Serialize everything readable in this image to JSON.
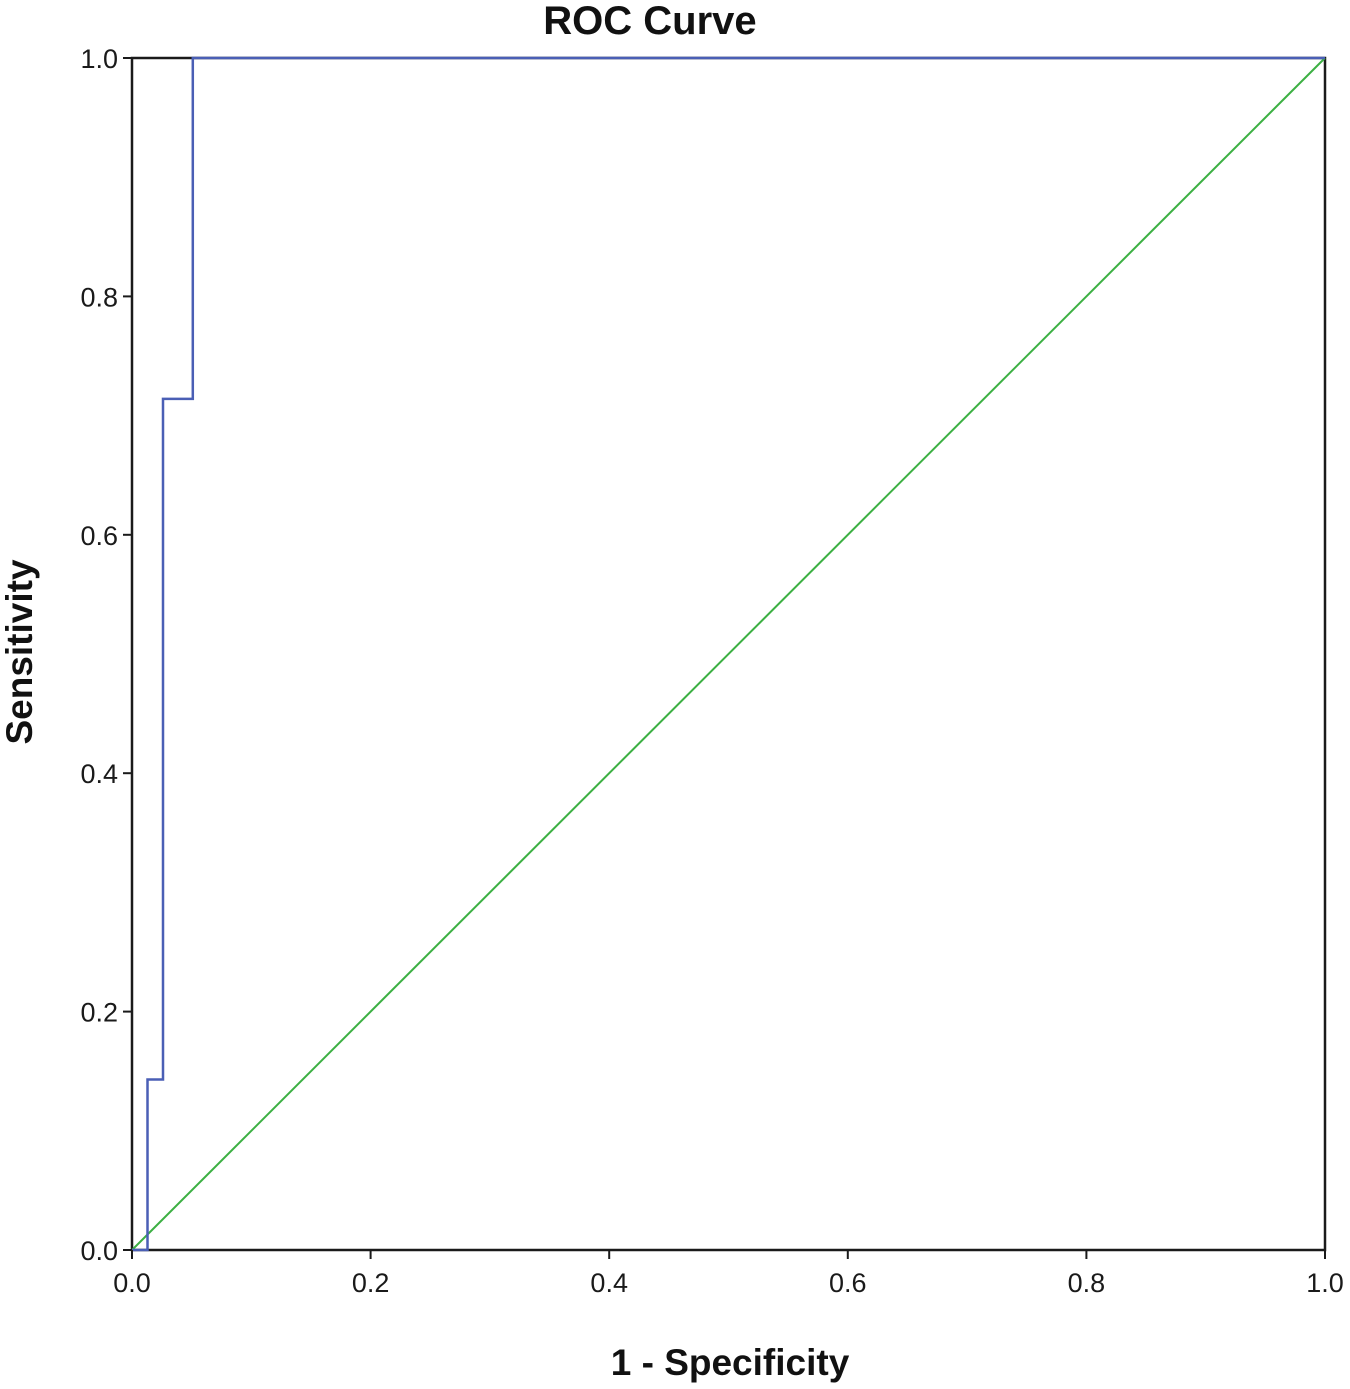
{
  "chart_data": {
    "type": "line",
    "title": "ROC Curve",
    "xlabel": "1 - Specificity",
    "ylabel": "Sensitivity",
    "xlim": [
      0,
      1
    ],
    "ylim": [
      0,
      1
    ],
    "xticks": [
      "0.0",
      "0.2",
      "0.4",
      "0.6",
      "0.8",
      "1.0"
    ],
    "yticks": [
      "0.0",
      "0.2",
      "0.4",
      "0.6",
      "0.8",
      "1.0"
    ],
    "grid": false,
    "legend": "none",
    "series": [
      {
        "color": "#4a5fb5",
        "step": true,
        "x": [
          0.0,
          0.013,
          0.013,
          0.026,
          0.026,
          0.051,
          0.051,
          1.0
        ],
        "y": [
          0.0,
          0.0,
          0.143,
          0.143,
          0.714,
          0.714,
          1.0,
          1.0
        ]
      },
      {
        "color": "#3cb043",
        "step": false,
        "x": [
          0.0,
          1.0
        ],
        "y": [
          0.0,
          1.0
        ]
      }
    ]
  }
}
